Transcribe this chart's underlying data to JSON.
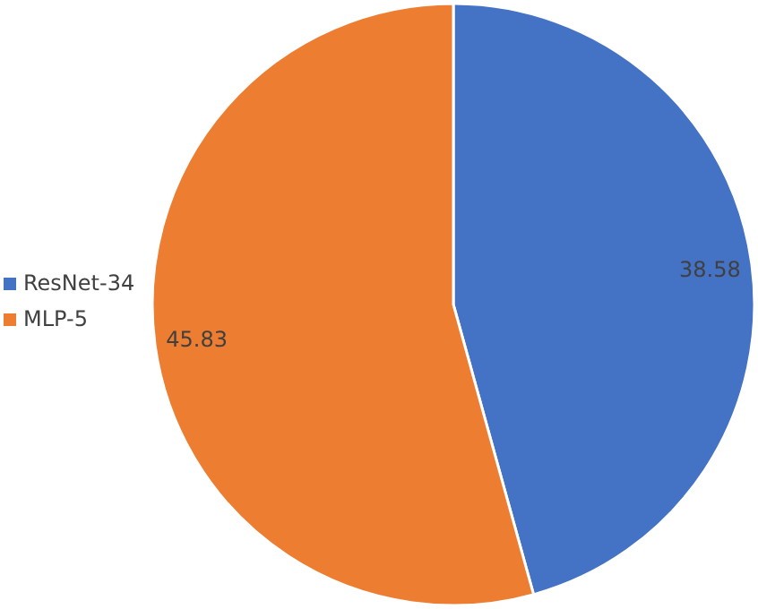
{
  "chart_data": {
    "type": "pie",
    "categories": [
      "ResNet-34",
      "MLP-5"
    ],
    "values": [
      38.58,
      45.83
    ],
    "colors": [
      "#4472c4",
      "#ed7d31"
    ],
    "data_labels": true,
    "legend": "left"
  }
}
